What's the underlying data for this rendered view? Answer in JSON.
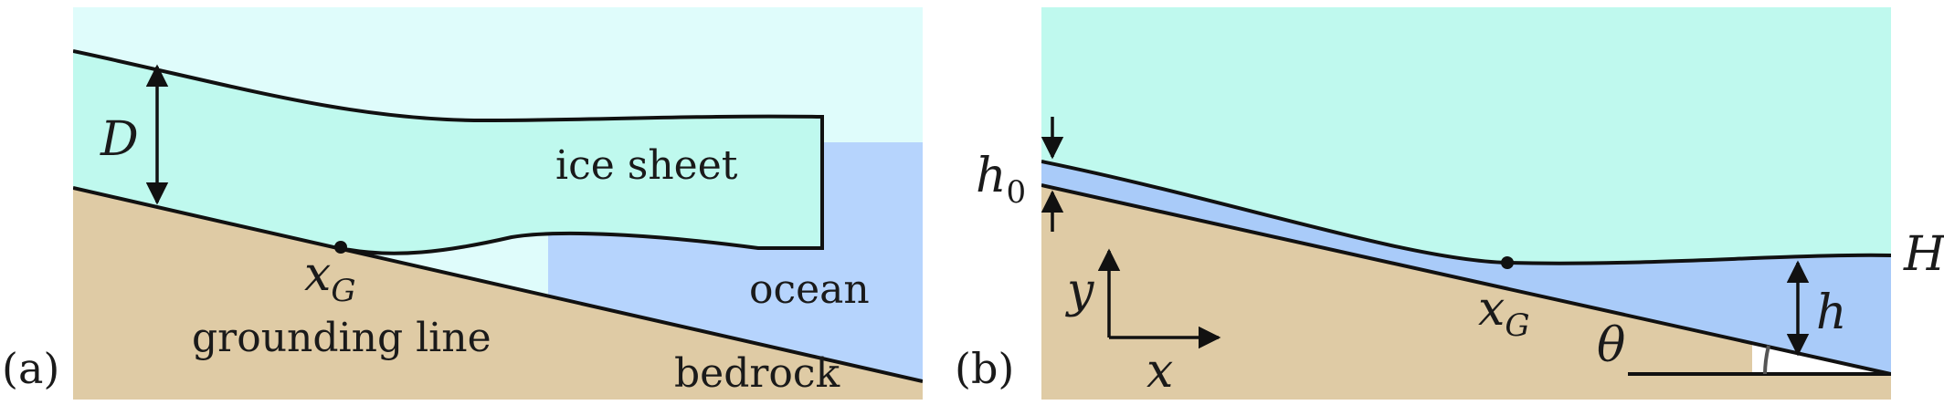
{
  "panel_a": {
    "panel_label": "(a)",
    "D": "D",
    "ice_sheet": "ice sheet",
    "ocean": "ocean",
    "x_base": "x",
    "x_sub": "G",
    "grounding_line": "grounding line",
    "bedrock": "bedrock"
  },
  "panel_b": {
    "panel_label": "(b)",
    "h0_base": "h",
    "h0_sub": "0",
    "y": "y",
    "x": "x",
    "xg_base": "x",
    "xg_sub": "G",
    "theta": "θ",
    "h": "h",
    "H": "H"
  },
  "colors": {
    "ice": "#bff9ee",
    "air": "#dffcfb",
    "ocean": "#b6d4fd",
    "water_b": "#a9cbf9",
    "bedrock": "#dfcba5"
  }
}
